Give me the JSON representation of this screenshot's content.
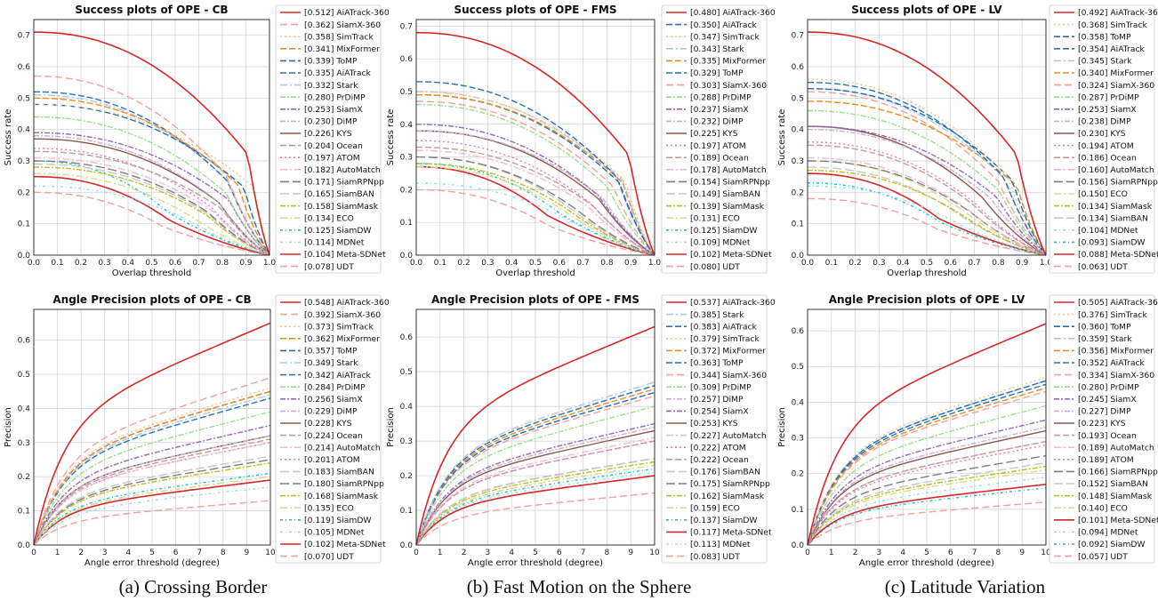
{
  "captions": [
    "(a) Crossing Border",
    "(b) Fast Motion on the Sphere",
    "(c) Latitude Variation"
  ],
  "tracker_colors": {
    "AiATrack-360": "#d62728",
    "SiamX-360": "#f4a09c",
    "SimTrack": "#f5c387",
    "MixFormer": "#f28a1c",
    "ToMP": "#1f6eb5",
    "AiATrack": "#2a72b8",
    "Stark": "#aec7e8",
    "PrDiMP": "#98df8a",
    "SiamX": "#9467bd",
    "DiMP": "#c5b0d5",
    "KYS": "#8c564b",
    "Ocean": "#c49c94",
    "ATOM": "#e377c2",
    "AutoMatch": "#f7b6d2",
    "SiamRPNpp": "#7f7f7f",
    "SiamBAN": "#c7c7c7",
    "SiamMask": "#bcbd22",
    "ECO": "#dbdb8d",
    "SiamDW": "#17becf",
    "MDNet": "#9edae5",
    "Meta-SDNet": "#d62728",
    "UDT": "#f4a09c"
  },
  "chart_data": [
    {
      "id": "success-cb",
      "type": "line",
      "title": "Success plots of OPE - CB",
      "xlabel": "Overlap threshold",
      "ylabel": "Success rate",
      "xlim": [
        0,
        1
      ],
      "ylim": [
        0,
        0.75
      ],
      "xticks": [
        "0.0",
        "0.1",
        "0.2",
        "0.3",
        "0.4",
        "0.5",
        "0.6",
        "0.7",
        "0.8",
        "0.9",
        "1.0"
      ],
      "yticks": [
        "0.0",
        "0.1",
        "0.2",
        "0.3",
        "0.4",
        "0.5",
        "0.6",
        "0.7"
      ],
      "grid": true,
      "legend": "right",
      "series": [
        {
          "name": "AiATrack-360",
          "score": "[0.512]",
          "start": 0.71
        },
        {
          "name": "SiamX-360",
          "score": "[0.362]",
          "start": 0.57
        },
        {
          "name": "SimTrack",
          "score": "[0.358]",
          "start": 0.48
        },
        {
          "name": "MixFormer",
          "score": "[0.341]",
          "start": 0.5
        },
        {
          "name": "ToMP",
          "score": "[0.339]",
          "start": 0.48
        },
        {
          "name": "AiATrack",
          "score": "[0.335]",
          "start": 0.52
        },
        {
          "name": "Stark",
          "score": "[0.332]",
          "start": 0.51
        },
        {
          "name": "PrDiMP",
          "score": "[0.280]",
          "start": 0.44
        },
        {
          "name": "SiamX",
          "score": "[0.253]",
          "start": 0.39
        },
        {
          "name": "DiMP",
          "score": "[0.230]",
          "start": 0.38
        },
        {
          "name": "KYS",
          "score": "[0.226]",
          "start": 0.37
        },
        {
          "name": "Ocean",
          "score": "[0.204]",
          "start": 0.33
        },
        {
          "name": "ATOM",
          "score": "[0.197]",
          "start": 0.34
        },
        {
          "name": "AutoMatch",
          "score": "[0.182]",
          "start": 0.31
        },
        {
          "name": "SiamRPNpp",
          "score": "[0.171]",
          "start": 0.3
        },
        {
          "name": "SiamBAN",
          "score": "[0.165]",
          "start": 0.29
        },
        {
          "name": "SiamMask",
          "score": "[0.158]",
          "start": 0.28
        },
        {
          "name": "ECO",
          "score": "[0.134]",
          "start": 0.26
        },
        {
          "name": "SiamDW",
          "score": "[0.125]",
          "start": 0.3
        },
        {
          "name": "MDNet",
          "score": "[0.114]",
          "start": 0.22
        },
        {
          "name": "Meta-SDNet",
          "score": "[0.104]",
          "start": 0.25
        },
        {
          "name": "UDT",
          "score": "[0.078]",
          "start": 0.2
        }
      ]
    },
    {
      "id": "success-fms",
      "type": "line",
      "title": "Success plots of OPE - FMS",
      "xlabel": "Overlap threshold",
      "ylabel": "Success rate",
      "xlim": [
        0,
        1
      ],
      "ylim": [
        0,
        0.72
      ],
      "xticks": [
        "0.0",
        "0.1",
        "0.2",
        "0.3",
        "0.4",
        "0.5",
        "0.6",
        "0.7",
        "0.8",
        "0.9",
        "1.0"
      ],
      "yticks": [
        "0.0",
        "0.1",
        "0.2",
        "0.3",
        "0.4",
        "0.5",
        "0.6",
        "0.7"
      ],
      "grid": true,
      "legend": "right",
      "series": [
        {
          "name": "AiATrack-360",
          "score": "[0.480]",
          "start": 0.68
        },
        {
          "name": "AiATrack",
          "score": "[0.350]",
          "start": 0.53
        },
        {
          "name": "SimTrack",
          "score": "[0.347]",
          "start": 0.5
        },
        {
          "name": "Stark",
          "score": "[0.343]",
          "start": 0.5
        },
        {
          "name": "MixFormer",
          "score": "[0.335]",
          "start": 0.49
        },
        {
          "name": "ToMP",
          "score": "[0.329]",
          "start": 0.49
        },
        {
          "name": "SiamX-360",
          "score": "[0.303]",
          "start": 0.47
        },
        {
          "name": "PrDiMP",
          "score": "[0.288]",
          "start": 0.46
        },
        {
          "name": "SiamX",
          "score": "[0.237]",
          "start": 0.4
        },
        {
          "name": "DiMP",
          "score": "[0.232]",
          "start": 0.38
        },
        {
          "name": "KYS",
          "score": "[0.225]",
          "start": 0.38
        },
        {
          "name": "ATOM",
          "score": "[0.197]",
          "start": 0.35
        },
        {
          "name": "Ocean",
          "score": "[0.189]",
          "start": 0.33
        },
        {
          "name": "AutoMatch",
          "score": "[0.178]",
          "start": 0.32
        },
        {
          "name": "SiamRPNpp",
          "score": "[0.154]",
          "start": 0.3
        },
        {
          "name": "SiamBAN",
          "score": "[0.149]",
          "start": 0.3
        },
        {
          "name": "SiamMask",
          "score": "[0.139]",
          "start": 0.28
        },
        {
          "name": "ECO",
          "score": "[0.131]",
          "start": 0.27
        },
        {
          "name": "SiamDW",
          "score": "[0.125]",
          "start": 0.28
        },
        {
          "name": "MDNet",
          "score": "[0.109]",
          "start": 0.22
        },
        {
          "name": "Meta-SDNet",
          "score": "[0.102]",
          "start": 0.27
        },
        {
          "name": "UDT",
          "score": "[0.080]",
          "start": 0.2
        }
      ]
    },
    {
      "id": "success-lv",
      "type": "line",
      "title": "Success plots of OPE - LV",
      "xlabel": "Overlap threshold",
      "ylabel": "Success rate",
      "xlim": [
        0,
        1
      ],
      "ylim": [
        0,
        0.75
      ],
      "xticks": [
        "0.0",
        "0.1",
        "0.2",
        "0.3",
        "0.4",
        "0.5",
        "0.6",
        "0.7",
        "0.8",
        "0.9",
        "1.0"
      ],
      "yticks": [
        "0.0",
        "0.1",
        "0.2",
        "0.3",
        "0.4",
        "0.5",
        "0.6",
        "0.7"
      ],
      "grid": true,
      "legend": "right",
      "series": [
        {
          "name": "AiATrack-360",
          "score": "[0.492]",
          "start": 0.71
        },
        {
          "name": "SimTrack",
          "score": "[0.368]",
          "start": 0.56
        },
        {
          "name": "ToMP",
          "score": "[0.358]",
          "start": 0.53
        },
        {
          "name": "AiATrack",
          "score": "[0.354]",
          "start": 0.55
        },
        {
          "name": "Stark",
          "score": "[0.345]",
          "start": 0.53
        },
        {
          "name": "MixFormer",
          "score": "[0.340]",
          "start": 0.49
        },
        {
          "name": "SiamX-360",
          "score": "[0.324]",
          "start": 0.52
        },
        {
          "name": "PrDiMP",
          "score": "[0.287]",
          "start": 0.46
        },
        {
          "name": "SiamX",
          "score": "[0.253]",
          "start": 0.41
        },
        {
          "name": "DiMP",
          "score": "[0.238]",
          "start": 0.4
        },
        {
          "name": "KYS",
          "score": "[0.230]",
          "start": 0.41
        },
        {
          "name": "ATOM",
          "score": "[0.194]",
          "start": 0.36
        },
        {
          "name": "Ocean",
          "score": "[0.186]",
          "start": 0.35
        },
        {
          "name": "AutoMatch",
          "score": "[0.160]",
          "start": 0.31
        },
        {
          "name": "SiamRPNpp",
          "score": "[0.156]",
          "start": 0.3
        },
        {
          "name": "ECO",
          "score": "[0.150]",
          "start": 0.3
        },
        {
          "name": "SiamMask",
          "score": "[0.134]",
          "start": 0.27
        },
        {
          "name": "SiamBAN",
          "score": "[0.134]",
          "start": 0.28
        },
        {
          "name": "MDNet",
          "score": "[0.104]",
          "start": 0.22
        },
        {
          "name": "SiamDW",
          "score": "[0.093]",
          "start": 0.23
        },
        {
          "name": "Meta-SDNet",
          "score": "[0.088]",
          "start": 0.26
        },
        {
          "name": "UDT",
          "score": "[0.063]",
          "start": 0.18
        }
      ]
    },
    {
      "id": "precision-cb",
      "type": "line",
      "title": "Angle Precision plots of OPE - CB",
      "xlabel": "Angle error threshold (degree)",
      "ylabel": "Precision",
      "xlim": [
        0,
        10
      ],
      "ylim": [
        0,
        0.69
      ],
      "xticks": [
        "0",
        "1",
        "2",
        "3",
        "4",
        "5",
        "6",
        "7",
        "8",
        "9",
        "10"
      ],
      "yticks": [
        "0.0",
        "0.1",
        "0.2",
        "0.3",
        "0.4",
        "0.5",
        "0.6"
      ],
      "grid": true,
      "legend": "right",
      "series": [
        {
          "name": "AiATrack-360",
          "score": "[0.548]",
          "end": 0.65
        },
        {
          "name": "SiamX-360",
          "score": "[0.392]",
          "end": 0.49
        },
        {
          "name": "SimTrack",
          "score": "[0.373]",
          "end": 0.46
        },
        {
          "name": "MixFormer",
          "score": "[0.362]",
          "end": 0.45
        },
        {
          "name": "ToMP",
          "score": "[0.357]",
          "end": 0.45
        },
        {
          "name": "Stark",
          "score": "[0.349]",
          "end": 0.44
        },
        {
          "name": "AiATrack",
          "score": "[0.342]",
          "end": 0.43
        },
        {
          "name": "PrDiMP",
          "score": "[0.284]",
          "end": 0.39
        },
        {
          "name": "SiamX",
          "score": "[0.256]",
          "end": 0.35
        },
        {
          "name": "DiMP",
          "score": "[0.229]",
          "end": 0.32
        },
        {
          "name": "KYS",
          "score": "[0.228]",
          "end": 0.32
        },
        {
          "name": "Ocean",
          "score": "[0.224]",
          "end": 0.31
        },
        {
          "name": "AutoMatch",
          "score": "[0.214]",
          "end": 0.3
        },
        {
          "name": "ATOM",
          "score": "[0.201]",
          "end": 0.3
        },
        {
          "name": "SiamBAN",
          "score": "[0.183]",
          "end": 0.26
        },
        {
          "name": "SiamRPNpp",
          "score": "[0.180]",
          "end": 0.25
        },
        {
          "name": "SiamMask",
          "score": "[0.168]",
          "end": 0.24
        },
        {
          "name": "ECO",
          "score": "[0.135]",
          "end": 0.2
        },
        {
          "name": "SiamDW",
          "score": "[0.119]",
          "end": 0.21
        },
        {
          "name": "MDNet",
          "score": "[0.105]",
          "end": 0.17
        },
        {
          "name": "Meta-SDNet",
          "score": "[0.102]",
          "end": 0.19
        },
        {
          "name": "UDT",
          "score": "[0.070]",
          "end": 0.13
        }
      ]
    },
    {
      "id": "precision-fms",
      "type": "line",
      "title": "Angle Precision plots of OPE - FMS",
      "xlabel": "Angle error threshold (degree)",
      "ylabel": "Precision",
      "xlim": [
        0,
        10
      ],
      "ylim": [
        0,
        0.68
      ],
      "xticks": [
        "0",
        "1",
        "2",
        "3",
        "4",
        "5",
        "6",
        "7",
        "8",
        "9",
        "10"
      ],
      "yticks": [
        "0.0",
        "0.1",
        "0.2",
        "0.3",
        "0.4",
        "0.5",
        "0.6"
      ],
      "grid": true,
      "legend": "right",
      "series": [
        {
          "name": "AiATrack-360",
          "score": "[0.537]",
          "end": 0.63
        },
        {
          "name": "Stark",
          "score": "[0.385]",
          "end": 0.47
        },
        {
          "name": "AiATrack",
          "score": "[0.383]",
          "end": 0.46
        },
        {
          "name": "SimTrack",
          "score": "[0.379]",
          "end": 0.46
        },
        {
          "name": "MixFormer",
          "score": "[0.372]",
          "end": 0.45
        },
        {
          "name": "ToMP",
          "score": "[0.363]",
          "end": 0.44
        },
        {
          "name": "SiamX-360",
          "score": "[0.344]",
          "end": 0.43
        },
        {
          "name": "PrDiMP",
          "score": "[0.309]",
          "end": 0.4
        },
        {
          "name": "DiMP",
          "score": "[0.257]",
          "end": 0.34
        },
        {
          "name": "SiamX",
          "score": "[0.254]",
          "end": 0.35
        },
        {
          "name": "KYS",
          "score": "[0.253]",
          "end": 0.33
        },
        {
          "name": "AutoMatch",
          "score": "[0.227]",
          "end": 0.31
        },
        {
          "name": "ATOM",
          "score": "[0.222]",
          "end": 0.3
        },
        {
          "name": "Ocean",
          "score": "[0.222]",
          "end": 0.3
        },
        {
          "name": "SiamBAN",
          "score": "[0.176]",
          "end": 0.25
        },
        {
          "name": "SiamRPNpp",
          "score": "[0.175]",
          "end": 0.25
        },
        {
          "name": "SiamMask",
          "score": "[0.162]",
          "end": 0.24
        },
        {
          "name": "ECO",
          "score": "[0.159]",
          "end": 0.23
        },
        {
          "name": "SiamDW",
          "score": "[0.137]",
          "end": 0.22
        },
        {
          "name": "Meta-SDNet",
          "score": "[0.117]",
          "end": 0.2
        },
        {
          "name": "MDNet",
          "score": "[0.113]",
          "end": 0.21
        },
        {
          "name": "UDT",
          "score": "[0.083]",
          "end": 0.15
        }
      ]
    },
    {
      "id": "precision-lv",
      "type": "line",
      "title": "Angle Precision plots of OPE - LV",
      "xlabel": "Angle error threshold (degree)",
      "ylabel": "Precision",
      "xlim": [
        0,
        10
      ],
      "ylim": [
        0,
        0.66
      ],
      "xticks": [
        "0",
        "1",
        "2",
        "3",
        "4",
        "5",
        "6",
        "7",
        "8",
        "9",
        "10"
      ],
      "yticks": [
        "0.0",
        "0.1",
        "0.2",
        "0.3",
        "0.4",
        "0.5",
        "0.6"
      ],
      "grid": true,
      "legend": "right",
      "series": [
        {
          "name": "AiATrack-360",
          "score": "[0.505]",
          "end": 0.62
        },
        {
          "name": "SimTrack",
          "score": "[0.376]",
          "end": 0.47
        },
        {
          "name": "ToMP",
          "score": "[0.360]",
          "end": 0.46
        },
        {
          "name": "Stark",
          "score": "[0.359]",
          "end": 0.46
        },
        {
          "name": "MixFormer",
          "score": "[0.356]",
          "end": 0.44
        },
        {
          "name": "AiATrack",
          "score": "[0.352]",
          "end": 0.45
        },
        {
          "name": "SiamX-360",
          "score": "[0.334]",
          "end": 0.43
        },
        {
          "name": "PrDiMP",
          "score": "[0.280]",
          "end": 0.39
        },
        {
          "name": "SiamX",
          "score": "[0.245]",
          "end": 0.35
        },
        {
          "name": "DiMP",
          "score": "[0.227]",
          "end": 0.33
        },
        {
          "name": "KYS",
          "score": "[0.223]",
          "end": 0.32
        },
        {
          "name": "Ocean",
          "score": "[0.193]",
          "end": 0.29
        },
        {
          "name": "AutoMatch",
          "score": "[0.189]",
          "end": 0.29
        },
        {
          "name": "ATOM",
          "score": "[0.189]",
          "end": 0.28
        },
        {
          "name": "SiamRPNpp",
          "score": "[0.166]",
          "end": 0.25
        },
        {
          "name": "SiamBAN",
          "score": "[0.152]",
          "end": 0.23
        },
        {
          "name": "SiamMask",
          "score": "[0.148]",
          "end": 0.22
        },
        {
          "name": "ECO",
          "score": "[0.140]",
          "end": 0.21
        },
        {
          "name": "Meta-SDNet",
          "score": "[0.101]",
          "end": 0.17
        },
        {
          "name": "MDNet",
          "score": "[0.094]",
          "end": 0.19
        },
        {
          "name": "SiamDW",
          "score": "[0.092]",
          "end": 0.16
        },
        {
          "name": "UDT",
          "score": "[0.057]",
          "end": 0.12
        }
      ]
    }
  ]
}
